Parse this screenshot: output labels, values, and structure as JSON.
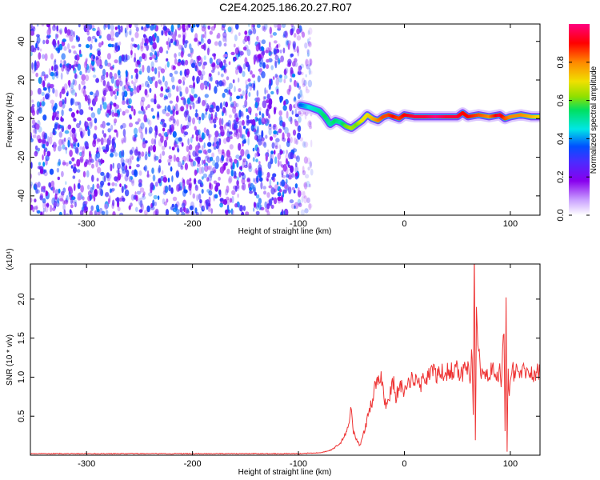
{
  "page": {
    "title": "C2E4.2025.186.20.27.R07"
  },
  "colors": {
    "rainbow": [
      "#ffffff",
      "#c9a0ff",
      "#8800ee",
      "#4a2cff",
      "#0050ff",
      "#00e6e6",
      "#00e060",
      "#90e000",
      "#f0e000",
      "#ff8800",
      "#ff0000",
      "#ff0080"
    ],
    "snr_line": "#ee3333",
    "background_scatter": "#8a2be2"
  },
  "chart_data": [
    {
      "type": "heatmap",
      "title": "",
      "xlabel": "Height of straight line (km)",
      "ylabel": "Frequency (Hz)",
      "xlim": [
        -353,
        128
      ],
      "ylim": [
        -50,
        49
      ],
      "xticks": [
        -300,
        -200,
        -100,
        0,
        100
      ],
      "yticks": [
        -40,
        -20,
        0,
        20,
        40
      ],
      "noise_region_x": [
        -353,
        -98
      ],
      "noise_amplitude_range": [
        0.1,
        0.4
      ],
      "signal_track": {
        "x": [
          -98,
          -90,
          -80,
          -75,
          -70,
          -65,
          -60,
          -55,
          -50,
          -45,
          -40,
          -35,
          -30,
          -25,
          -20,
          -15,
          -10,
          -5,
          0,
          10,
          20,
          30,
          40,
          50,
          55,
          60,
          70,
          80,
          90,
          95,
          100,
          110,
          120,
          128
        ],
        "y": [
          7,
          6,
          4,
          1,
          -3,
          -1,
          -2,
          -4,
          -5,
          -3,
          -1,
          2,
          0,
          -1,
          1,
          2,
          1,
          0,
          2,
          1,
          1,
          1,
          1,
          1,
          3,
          1,
          2,
          1,
          2,
          0,
          1,
          2,
          1,
          1
        ],
        "amplitude": [
          0.35,
          0.45,
          0.5,
          0.55,
          0.5,
          0.55,
          0.5,
          0.6,
          0.65,
          0.6,
          0.7,
          0.7,
          0.75,
          0.8,
          0.85,
          0.85,
          0.9,
          0.85,
          0.9,
          0.95,
          0.95,
          1.0,
          0.95,
          0.95,
          0.9,
          0.9,
          0.85,
          0.8,
          0.95,
          0.85,
          0.8,
          0.8,
          0.75,
          0.7
        ]
      },
      "colorbar": {
        "label": "Normalized spectral amplitude",
        "range": [
          0,
          1
        ],
        "ticks": [
          "0.0",
          "0.2",
          "0.4",
          "0.6",
          "0.8"
        ]
      }
    },
    {
      "type": "line",
      "title": "",
      "xlabel": "Height of straight line (km)",
      "ylabel": "SNR (10 * v/v)",
      "yunit": "(x10⁴)",
      "xlim": [
        -353,
        128
      ],
      "ylim": [
        0,
        2.45
      ],
      "xticks": [
        -300,
        -200,
        -100,
        0,
        100
      ],
      "yticks": [
        0.5,
        1.0,
        1.5,
        2.0
      ],
      "ytick_labels": [
        "0.5",
        "1.0",
        "1.5",
        "2.0"
      ],
      "series": [
        {
          "x": [
            -353,
            -300,
            -250,
            -200,
            -150,
            -100,
            -80,
            -70,
            -60,
            -55,
            -52,
            -50,
            -48,
            -45,
            -42,
            -40,
            -36,
            -33,
            -30,
            -28,
            -25,
            -22,
            -20,
            -18,
            -15,
            -12,
            -10,
            -8,
            -5,
            -2,
            0,
            5,
            10,
            15,
            20,
            25,
            30,
            35,
            40,
            45,
            50,
            55,
            58,
            60,
            62,
            64,
            65,
            66,
            67,
            68,
            70,
            72,
            75,
            80,
            85,
            90,
            92,
            94,
            95,
            96,
            97,
            98,
            99,
            100,
            102,
            105,
            110,
            115,
            120,
            125,
            128
          ],
          "y": [
            0.02,
            0.02,
            0.02,
            0.02,
            0.02,
            0.02,
            0.03,
            0.06,
            0.15,
            0.3,
            0.45,
            0.62,
            0.3,
            0.2,
            0.12,
            0.2,
            0.4,
            0.6,
            0.7,
            0.9,
            0.95,
            1.05,
            0.85,
            0.65,
            0.75,
            0.85,
            0.95,
            0.75,
            0.85,
            0.9,
            0.78,
            0.95,
            1.0,
            0.9,
            1.0,
            1.08,
            1.02,
            1.05,
            1.08,
            1.06,
            1.1,
            1.05,
            1.12,
            1.08,
            0.98,
            1.35,
            0.5,
            2.45,
            0.2,
            1.7,
            1.35,
            1.0,
            1.08,
            1.05,
            1.08,
            1.05,
            0.95,
            1.75,
            0.3,
            1.88,
            0.05,
            1.2,
            0.7,
            1.05,
            1.08,
            1.05,
            1.08,
            1.04,
            1.07,
            1.05,
            1.06
          ]
        }
      ]
    }
  ]
}
